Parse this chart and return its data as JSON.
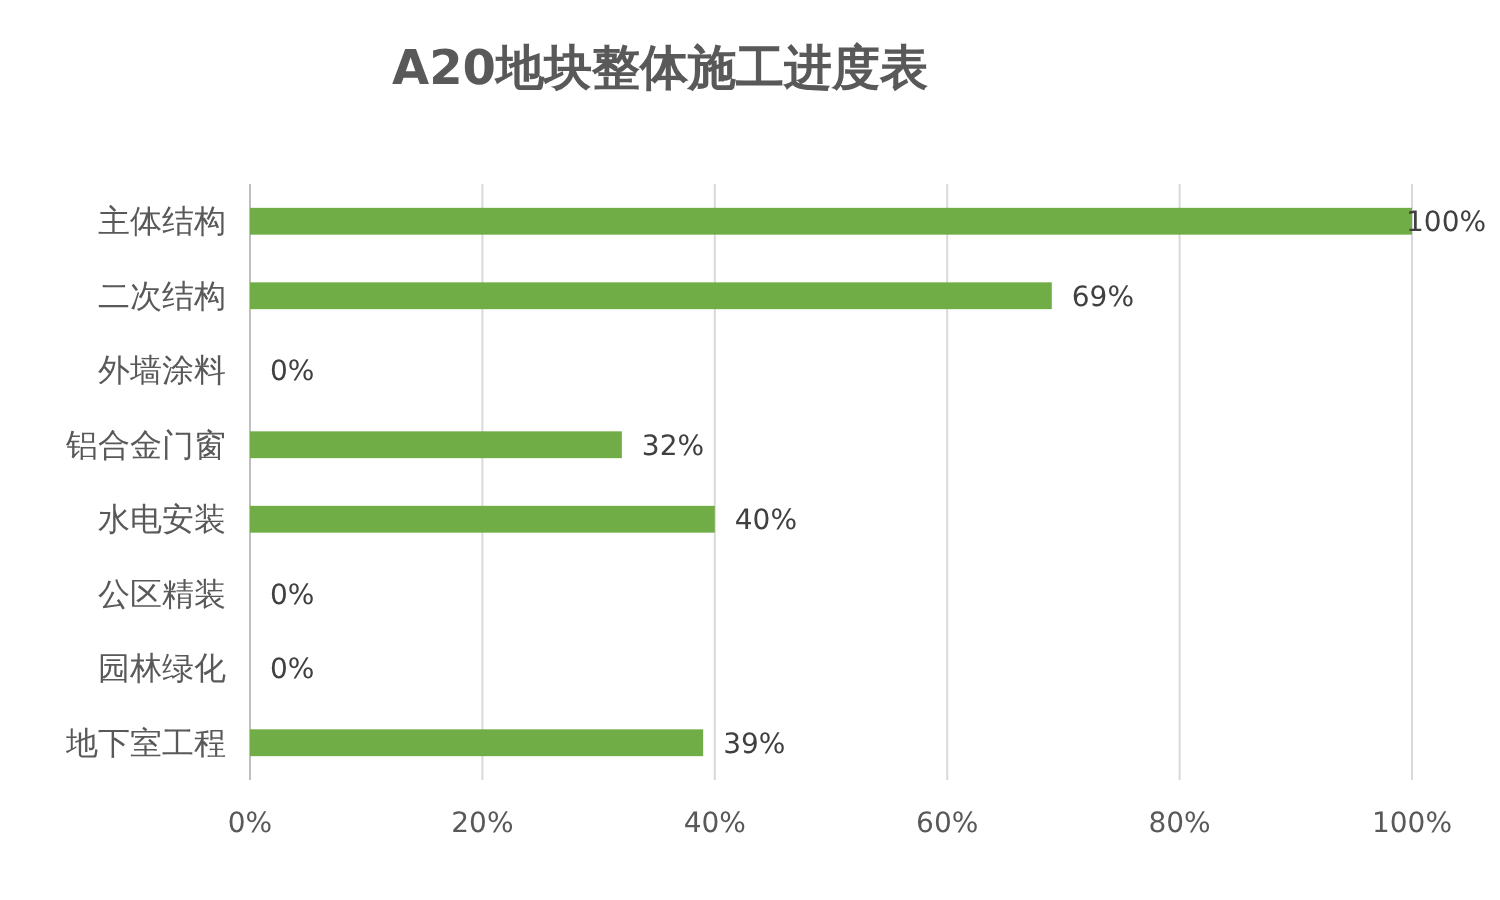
{
  "chart_data": {
    "type": "bar",
    "orientation": "horizontal",
    "title": "A20地块整体施工进度表",
    "categories": [
      "主体结构",
      "二次结构",
      "外墙涂料",
      "铝合金门窗",
      "水电安装",
      "公区精装",
      "园林绿化",
      "地下室工程"
    ],
    "values": [
      100,
      69,
      0,
      32,
      40,
      0,
      0,
      39
    ],
    "value_labels": [
      "100%",
      "69%",
      "0%",
      "32%",
      "40%",
      "0%",
      "0%",
      "39%"
    ],
    "color": "#70ad47",
    "xlim": [
      0,
      100
    ],
    "xticks": [
      {
        "value": 0,
        "label": "0%"
      },
      {
        "value": 20,
        "label": "20%"
      },
      {
        "value": 40,
        "label": "40%"
      },
      {
        "value": 60,
        "label": "60%"
      },
      {
        "value": 80,
        "label": "80%"
      },
      {
        "value": 100,
        "label": "100%"
      }
    ],
    "grid": "x"
  }
}
